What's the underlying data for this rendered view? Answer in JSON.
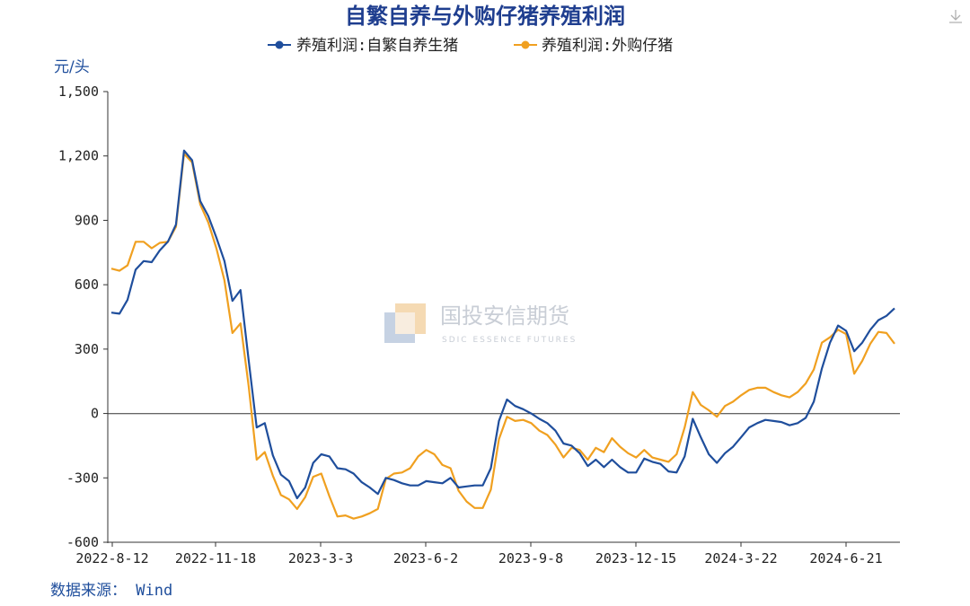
{
  "chart_data": {
    "type": "line",
    "title": "自繁自养与外购仔猪养殖利润",
    "ylabel": "元/头",
    "source": "数据来源： Wind",
    "watermark": "国投安信期货",
    "watermark_sub": "SDIC ESSENCE FUTURES",
    "ylim": [
      -600,
      1500
    ],
    "yticks": [
      -600,
      -300,
      0,
      300,
      600,
      900,
      1200,
      1500
    ],
    "ytick_labels": [
      "-600",
      "-300",
      "0",
      "300",
      "600",
      "900",
      "1,200",
      "1,500"
    ],
    "xtick_labels": [
      "2022-8-12",
      "2022-11-18",
      "2023-3-3",
      "2023-6-2",
      "2023-9-8",
      "2023-12-15",
      "2024-3-22",
      "2024-6-21"
    ],
    "grid": false,
    "legend_position": "top-center",
    "series": [
      {
        "name": "养殖利润:自繁自养生猪",
        "color": "#1f4e9c",
        "values": [
          470,
          465,
          530,
          670,
          710,
          705,
          760,
          800,
          880,
          1225,
          1180,
          990,
          920,
          820,
          710,
          525,
          575,
          250,
          -65,
          -45,
          -195,
          -285,
          -315,
          -395,
          -345,
          -230,
          -190,
          -200,
          -255,
          -260,
          -280,
          -320,
          -345,
          -375,
          -300,
          -310,
          -325,
          -335,
          -335,
          -315,
          -320,
          -325,
          -300,
          -345,
          -340,
          -335,
          -335,
          -255,
          -35,
          65,
          35,
          20,
          0,
          -25,
          -45,
          -80,
          -140,
          -150,
          -185,
          -245,
          -215,
          -250,
          -215,
          -250,
          -275,
          -275,
          -210,
          -225,
          -235,
          -270,
          -275,
          -200,
          -25,
          -110,
          -190,
          -230,
          -185,
          -155,
          -110,
          -65,
          -45,
          -30,
          -35,
          -40,
          -55,
          -45,
          -20,
          55,
          210,
          330,
          410,
          385,
          290,
          330,
          390,
          435,
          455,
          490
        ]
      },
      {
        "name": "养殖利润:外购仔猪",
        "color": "#f0a020",
        "values": [
          675,
          665,
          690,
          800,
          800,
          770,
          795,
          800,
          870,
          1210,
          1170,
          975,
          890,
          770,
          620,
          375,
          420,
          130,
          -215,
          -180,
          -290,
          -380,
          -400,
          -445,
          -390,
          -295,
          -280,
          -385,
          -480,
          -475,
          -490,
          -480,
          -465,
          -445,
          -305,
          -280,
          -275,
          -255,
          -200,
          -170,
          -190,
          -240,
          -255,
          -360,
          -410,
          -440,
          -440,
          -355,
          -120,
          -15,
          -35,
          -30,
          -45,
          -80,
          -100,
          -145,
          -205,
          -160,
          -170,
          -215,
          -160,
          -180,
          -115,
          -155,
          -185,
          -205,
          -170,
          -205,
          -215,
          -225,
          -190,
          -65,
          100,
          40,
          15,
          -15,
          35,
          55,
          85,
          110,
          120,
          120,
          100,
          85,
          75,
          100,
          140,
          205,
          330,
          355,
          390,
          370,
          185,
          245,
          325,
          380,
          375,
          325
        ]
      }
    ]
  },
  "toolbar": {
    "download_icon": "download-icon"
  }
}
